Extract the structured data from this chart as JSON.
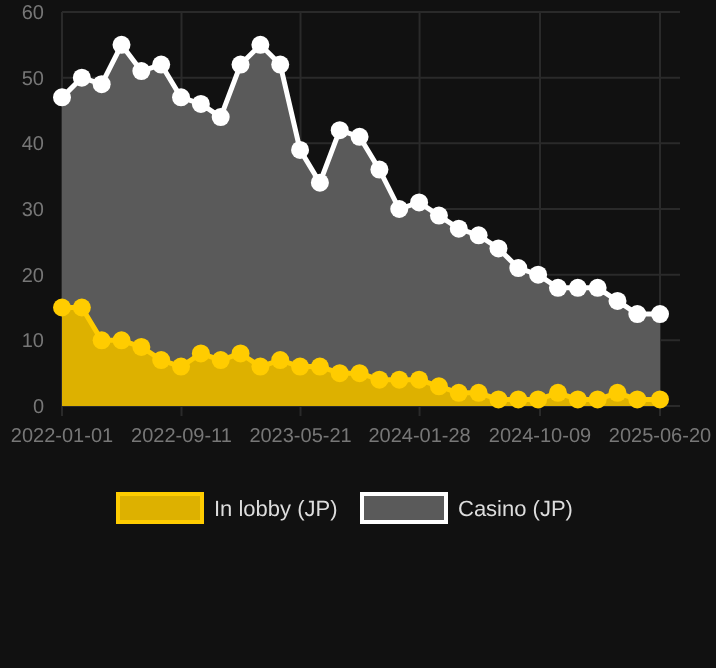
{
  "chart_data": {
    "type": "area",
    "x": [
      "2022-01-01",
      "2022-02-12",
      "2022-03-26",
      "2022-05-07",
      "2022-06-18",
      "2022-07-30",
      "2022-09-10",
      "2022-10-22",
      "2022-12-03",
      "2023-01-14",
      "2023-02-25",
      "2023-04-08",
      "2023-05-20",
      "2023-07-01",
      "2023-08-12",
      "2023-09-23",
      "2023-11-04",
      "2023-12-16",
      "2024-01-27",
      "2024-03-09",
      "2024-04-20",
      "2024-06-01",
      "2024-07-13",
      "2024-08-24",
      "2024-10-05",
      "2024-11-16",
      "2024-12-28",
      "2025-02-08",
      "2025-03-22",
      "2025-05-03",
      "2025-06-20"
    ],
    "series": [
      {
        "name": "Casino (JP)",
        "color": "#ffffff",
        "values": [
          47,
          50,
          49,
          55,
          51,
          52,
          47,
          46,
          44,
          52,
          55,
          52,
          39,
          34,
          42,
          41,
          36,
          30,
          31,
          29,
          27,
          26,
          24,
          21,
          20,
          18,
          18,
          18,
          16,
          14,
          14
        ]
      },
      {
        "name": "In lobby (JP)",
        "color": "#ffcc00",
        "values": [
          15,
          15,
          10,
          10,
          9,
          7,
          6,
          8,
          7,
          8,
          6,
          7,
          6,
          6,
          5,
          5,
          4,
          4,
          4,
          3,
          2,
          2,
          1,
          1,
          1,
          2,
          1,
          1,
          2,
          1,
          1
        ]
      }
    ],
    "xlim": [
      "2022-01-01",
      "2025-06-20"
    ],
    "xticks": [
      "2022-01-01",
      "2022-09-11",
      "2023-05-21",
      "2024-01-28",
      "2024-10-09",
      "2025-06-20"
    ],
    "ylim": [
      0,
      60
    ],
    "yticks": [
      0,
      10,
      20,
      30,
      40,
      50,
      60
    ],
    "grid": true,
    "legend": "bottom",
    "marker": "circle"
  }
}
